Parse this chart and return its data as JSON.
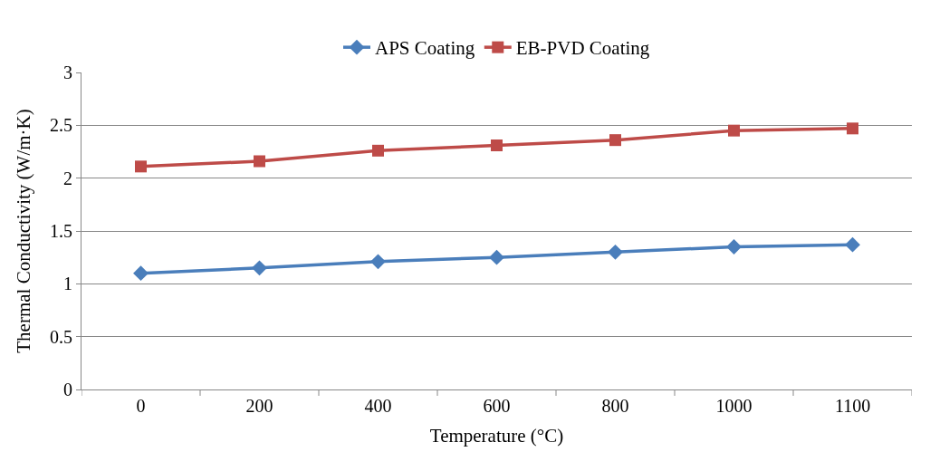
{
  "chart_data": {
    "type": "line",
    "xlabel": "Temperature (°C)",
    "ylabel": "Thermal Conductivity (W/m·K)",
    "categories": [
      "0",
      "200",
      "400",
      "600",
      "800",
      "1000",
      "1100"
    ],
    "series": [
      {
        "name": "APS Coating",
        "color": "#4a7ebb",
        "marker": "diamond",
        "values": [
          1.1,
          1.15,
          1.21,
          1.25,
          1.3,
          1.35,
          1.37
        ]
      },
      {
        "name": "EB-PVD Coating",
        "color": "#be4b48",
        "marker": "square",
        "values": [
          2.11,
          2.16,
          2.26,
          2.31,
          2.36,
          2.45,
          2.47
        ]
      }
    ],
    "ylim": [
      0,
      3
    ],
    "yticks": [
      0,
      0.5,
      1,
      1.5,
      2,
      2.5,
      3
    ],
    "grid": "y",
    "legend": "top"
  }
}
